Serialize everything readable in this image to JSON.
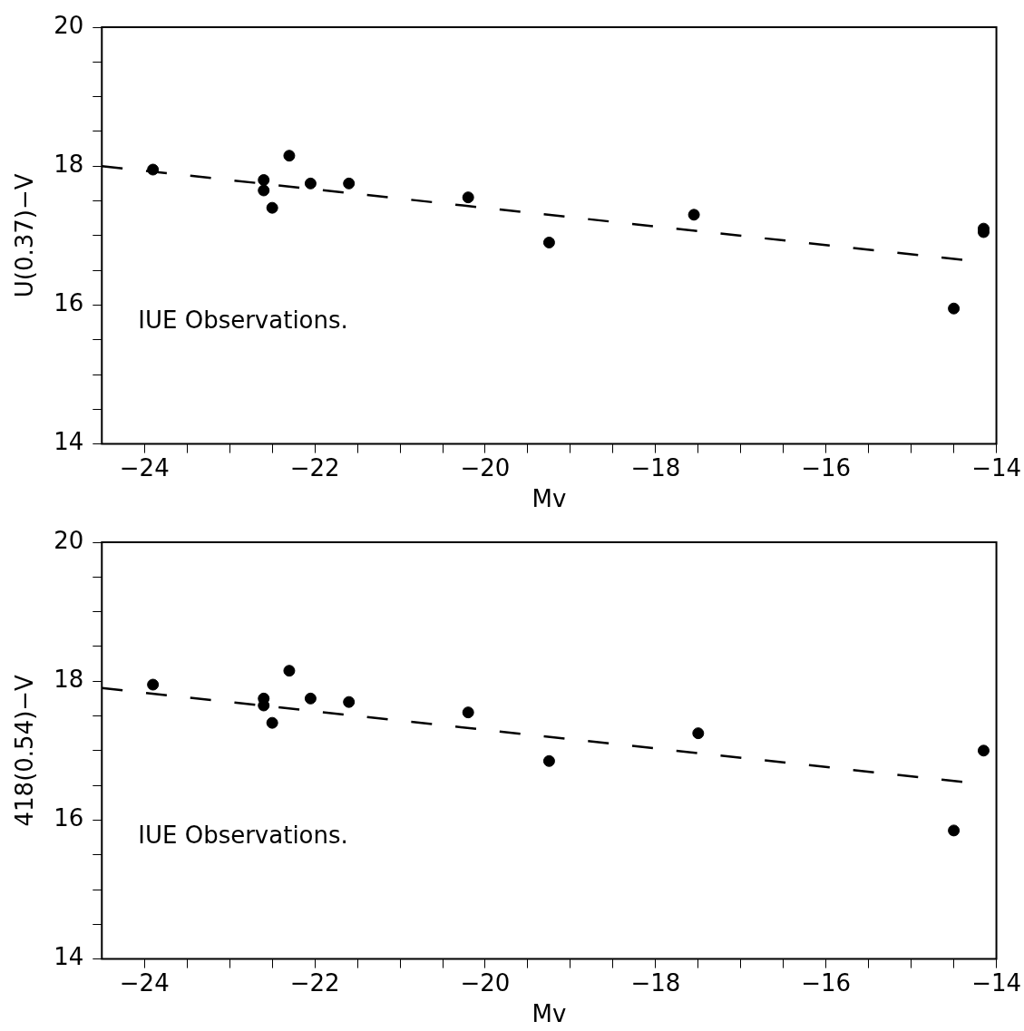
{
  "chart_data": [
    {
      "type": "scatter",
      "xlabel": "Mv",
      "ylabel": "U(0.37)−V",
      "xlim": [
        -24.5,
        -14
      ],
      "ylim": [
        14,
        20
      ],
      "xticks": [
        -24,
        {
          "value": -23.5,
          "label": null
        },
        {
          "value": -23,
          "label": null
        },
        {
          "value": -22.5,
          "label": null
        },
        -22,
        {
          "value": -21.5,
          "label": null
        },
        {
          "value": -21,
          "label": null
        },
        {
          "value": -20.5,
          "label": null
        },
        -20,
        {
          "value": -19.5,
          "label": null
        },
        {
          "value": -19,
          "label": null
        },
        {
          "value": -18.5,
          "label": null
        },
        -18,
        {
          "value": -17.5,
          "label": null
        },
        {
          "value": -17,
          "label": null
        },
        {
          "value": -16.5,
          "label": null
        },
        -16,
        {
          "value": -15.5,
          "label": null
        },
        {
          "value": -15,
          "label": null
        },
        {
          "value": -14.5,
          "label": null
        },
        -14
      ],
      "yticks": [
        14,
        {
          "value": 14.5,
          "label": null
        },
        {
          "value": 15,
          "label": null
        },
        {
          "value": 15.5,
          "label": null
        },
        16,
        {
          "value": 16.5,
          "label": null
        },
        {
          "value": 17,
          "label": null
        },
        {
          "value": 17.5,
          "label": null
        },
        18,
        {
          "value": 18.5,
          "label": null
        },
        {
          "value": 19,
          "label": null
        },
        {
          "value": 19.5,
          "label": null
        },
        20
      ],
      "grid": false,
      "legend": false,
      "annotations": [
        "IUE Observations."
      ],
      "series": [
        {
          "type": "scatter",
          "color": "#000000",
          "marker": "circle",
          "x": [
            -23.9,
            -22.6,
            -22.6,
            -22.5,
            -22.3,
            -22.05,
            -21.6,
            -20.2,
            -19.25,
            -17.55,
            -14.5,
            -14.15,
            -14.15
          ],
          "values": [
            17.95,
            17.8,
            17.65,
            17.4,
            18.15,
            17.75,
            17.75,
            17.55,
            16.9,
            17.3,
            15.95,
            17.1,
            17.05
          ]
        },
        {
          "type": "line",
          "color": "#000000",
          "line_style": "dashed",
          "marker": "none",
          "x": [
            -24.5,
            -14.4
          ],
          "values": [
            18.0,
            16.65
          ]
        }
      ]
    },
    {
      "type": "scatter",
      "xlabel": "Mv",
      "ylabel": "418(0.54)−V",
      "xlim": [
        -24.5,
        -14
      ],
      "ylim": [
        14,
        20
      ],
      "xticks": [
        -24,
        {
          "value": -23.5,
          "label": null
        },
        {
          "value": -23,
          "label": null
        },
        {
          "value": -22.5,
          "label": null
        },
        -22,
        {
          "value": -21.5,
          "label": null
        },
        {
          "value": -21,
          "label": null
        },
        {
          "value": -20.5,
          "label": null
        },
        -20,
        {
          "value": -19.5,
          "label": null
        },
        {
          "value": -19,
          "label": null
        },
        {
          "value": -18.5,
          "label": null
        },
        -18,
        {
          "value": -17.5,
          "label": null
        },
        {
          "value": -17,
          "label": null
        },
        {
          "value": -16.5,
          "label": null
        },
        -16,
        {
          "value": -15.5,
          "label": null
        },
        {
          "value": -15,
          "label": null
        },
        {
          "value": -14.5,
          "label": null
        },
        -14
      ],
      "yticks": [
        14,
        {
          "value": 14.5,
          "label": null
        },
        {
          "value": 15,
          "label": null
        },
        {
          "value": 15.5,
          "label": null
        },
        16,
        {
          "value": 16.5,
          "label": null
        },
        {
          "value": 17,
          "label": null
        },
        {
          "value": 17.5,
          "label": null
        },
        18,
        {
          "value": 18.5,
          "label": null
        },
        {
          "value": 19,
          "label": null
        },
        {
          "value": 19.5,
          "label": null
        },
        20
      ],
      "grid": false,
      "legend": false,
      "annotations": [
        "IUE Observations."
      ],
      "series": [
        {
          "type": "scatter",
          "color": "#000000",
          "marker": "circle",
          "x": [
            -23.9,
            -22.6,
            -22.6,
            -22.5,
            -22.3,
            -22.05,
            -21.6,
            -20.2,
            -19.25,
            -17.5,
            -14.5,
            -14.15
          ],
          "values": [
            17.95,
            17.75,
            17.65,
            17.4,
            18.15,
            17.75,
            17.7,
            17.55,
            16.85,
            17.25,
            15.85,
            17.0
          ]
        },
        {
          "type": "line",
          "color": "#000000",
          "line_style": "dashed",
          "marker": "none",
          "x": [
            -24.5,
            -14.4
          ],
          "values": [
            17.9,
            16.55
          ]
        }
      ]
    }
  ]
}
